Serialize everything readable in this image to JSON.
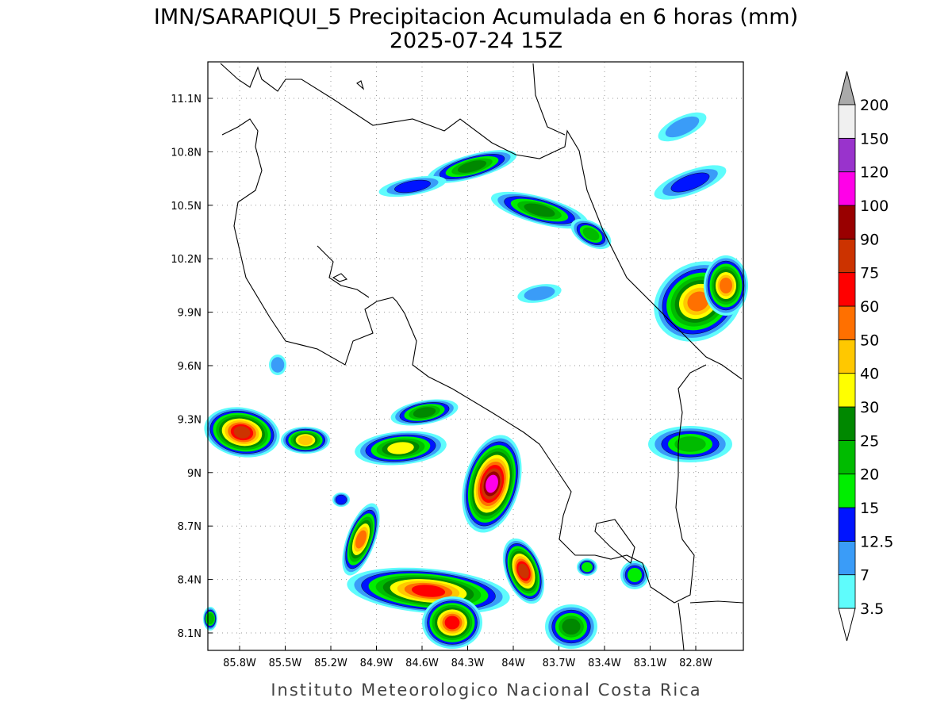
{
  "title": "IMN/SARAPIQUI_5 Precipitacion Acumulada en 6 horas (mm)",
  "subtitle": "2025-07-24 15Z",
  "map": {
    "lat_ticks": [
      {
        "value": 11.1,
        "label": "11.1N"
      },
      {
        "value": 10.8,
        "label": "10.8N"
      },
      {
        "value": 10.5,
        "label": "10.5N"
      },
      {
        "value": 10.2,
        "label": "10.2N"
      },
      {
        "value": 9.9,
        "label": "9.9N"
      },
      {
        "value": 9.6,
        "label": "9.6N"
      },
      {
        "value": 9.3,
        "label": "9.3N"
      },
      {
        "value": 9,
        "label": "9N"
      },
      {
        "value": 8.7,
        "label": "8.7N"
      },
      {
        "value": 8.4,
        "label": "8.4N"
      },
      {
        "value": 8.1,
        "label": "8.1N"
      }
    ],
    "lon_ticks": [
      {
        "value": -85.8,
        "label": "85.8W"
      },
      {
        "value": -85.5,
        "label": "85.5W"
      },
      {
        "value": -85.2,
        "label": "85.2W"
      },
      {
        "value": -84.9,
        "label": "84.9W"
      },
      {
        "value": -84.6,
        "label": "84.6W"
      },
      {
        "value": -84.3,
        "label": "84.3W"
      },
      {
        "value": -84,
        "label": "84W"
      },
      {
        "value": -83.7,
        "label": "83.7W"
      },
      {
        "value": -83.4,
        "label": "83.4W"
      },
      {
        "value": -83.1,
        "label": "83.1W"
      },
      {
        "value": -82.8,
        "label": "82.8W"
      }
    ]
  },
  "colorbar": {
    "levels": [
      3.5,
      7,
      12.5,
      15,
      20,
      25,
      30,
      40,
      50,
      60,
      75,
      90,
      100,
      120,
      150,
      200
    ],
    "colors": [
      "#ffffff",
      "#5ffcfc",
      "#3a9cf8",
      "#0014ff",
      "#00ee00",
      "#00bb00",
      "#008800",
      "#ffff00",
      "#ffc800",
      "#ff7000",
      "#ff0000",
      "#cc3300",
      "#990000",
      "#ff00e8",
      "#9933cc",
      "#f0f0f0",
      "#aaaaaa"
    ]
  },
  "footer": "Instituto Meteorologico Nacional Costa Rica"
}
